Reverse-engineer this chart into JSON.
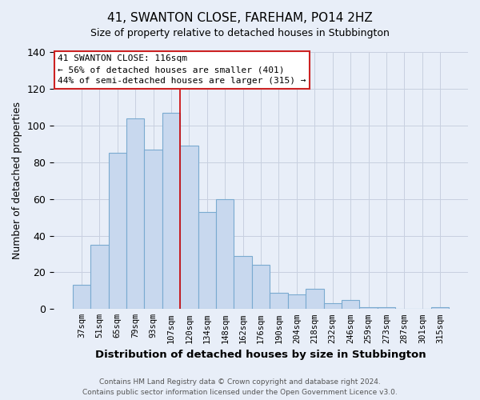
{
  "title": "41, SWANTON CLOSE, FAREHAM, PO14 2HZ",
  "subtitle": "Size of property relative to detached houses in Stubbington",
  "xlabel": "Distribution of detached houses by size in Stubbington",
  "ylabel": "Number of detached properties",
  "bar_labels": [
    "37sqm",
    "51sqm",
    "65sqm",
    "79sqm",
    "93sqm",
    "107sqm",
    "120sqm",
    "134sqm",
    "148sqm",
    "162sqm",
    "176sqm",
    "190sqm",
    "204sqm",
    "218sqm",
    "232sqm",
    "246sqm",
    "259sqm",
    "273sqm",
    "287sqm",
    "301sqm",
    "315sqm"
  ],
  "bar_values": [
    13,
    35,
    85,
    104,
    87,
    107,
    89,
    53,
    60,
    29,
    24,
    9,
    8,
    11,
    3,
    5,
    1,
    1,
    0,
    0,
    1
  ],
  "bar_color": "#c8d8ee",
  "bar_edge_color": "#7aaad0",
  "vline_color": "#cc0000",
  "vline_x_index": 5,
  "ylim": [
    0,
    140
  ],
  "yticks": [
    0,
    20,
    40,
    60,
    80,
    100,
    120,
    140
  ],
  "annotation_title": "41 SWANTON CLOSE: 116sqm",
  "annotation_line1": "← 56% of detached houses are smaller (401)",
  "annotation_line2": "44% of semi-detached houses are larger (315) →",
  "footer1": "Contains HM Land Registry data © Crown copyright and database right 2024.",
  "footer2": "Contains public sector information licensed under the Open Government Licence v3.0.",
  "background_color": "#e8eef8",
  "plot_bg_color": "#e8eef8",
  "grid_color": "#c8d0e0"
}
